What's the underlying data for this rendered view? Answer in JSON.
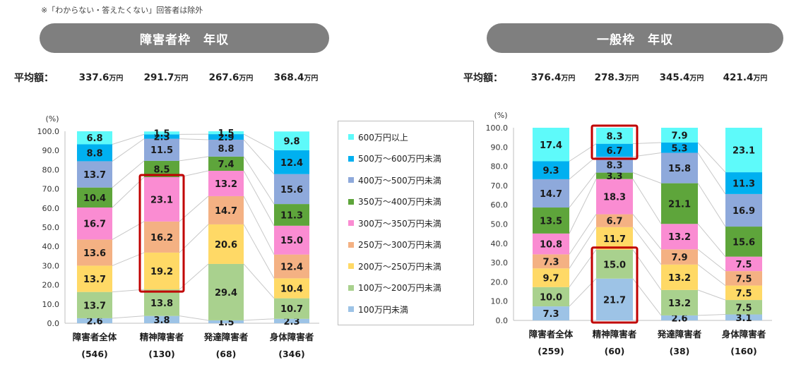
{
  "note": "※「わからない・答えたくない」回答者は除外",
  "titles": {
    "left": "障害者枠　年収",
    "right": "一般枠　年収"
  },
  "avg_label": "平均額：",
  "avg_unit": "万円",
  "avg_left": [
    "337.6",
    "291.7",
    "267.6",
    "368.4"
  ],
  "avg_right": [
    "376.4",
    "278.3",
    "345.4",
    "421.4"
  ],
  "legend": [
    {
      "label": "600万円以上",
      "color": "#5EFAFA"
    },
    {
      "label": "500万～600万円未満",
      "color": "#00B0F0"
    },
    {
      "label": "400万～500万円未満",
      "color": "#8EA9DB"
    },
    {
      "label": "350万～400万円未満",
      "color": "#5EA53B"
    },
    {
      "label": "300万～350万円未満",
      "color": "#FA8CD2"
    },
    {
      "label": "250万～300万円未満",
      "color": "#F4B183"
    },
    {
      "label": "200万～250万円未満",
      "color": "#FFD966"
    },
    {
      "label": "100万～200万円未満",
      "color": "#A9D18E"
    },
    {
      "label": "100万円未満",
      "color": "#9DC3E6"
    }
  ],
  "chart_data": [
    {
      "type": "bar",
      "stacked": true,
      "title": "障害者枠　年収",
      "ylabel": "(%)",
      "ylim": [
        0,
        100
      ],
      "yticks": [
        "0.0",
        "10.0",
        "20.0",
        "30.0",
        "40.0",
        "50.0",
        "60.0",
        "70.0",
        "80.0",
        "90.0",
        "100.0"
      ],
      "categories": [
        "障害者全体",
        "精神障害者",
        "発達障害者",
        "身体障害者"
      ],
      "counts": [
        "(546)",
        "(130)",
        "(68)",
        "(346)"
      ],
      "series": [
        {
          "name": "100万円未満",
          "values": [
            2.6,
            3.8,
            1.5,
            2.3
          ]
        },
        {
          "name": "100万～200万円未満",
          "values": [
            13.7,
            13.8,
            29.4,
            10.7
          ]
        },
        {
          "name": "200万～250万円未満",
          "values": [
            13.7,
            19.2,
            20.6,
            10.4
          ]
        },
        {
          "name": "250万～300万円未満",
          "values": [
            13.6,
            16.2,
            14.7,
            12.4
          ]
        },
        {
          "name": "300万～350万円未満",
          "values": [
            16.7,
            23.1,
            13.2,
            15.0
          ]
        },
        {
          "name": "350万～400万円未満",
          "values": [
            10.4,
            8.5,
            7.4,
            11.3
          ]
        },
        {
          "name": "400万～500万円未満",
          "values": [
            13.7,
            11.5,
            8.8,
            15.6
          ]
        },
        {
          "name": "500万～600万円未満",
          "values": [
            8.8,
            2.3,
            2.9,
            12.4
          ]
        },
        {
          "name": "600万円以上",
          "values": [
            6.8,
            1.5,
            1.5,
            9.8
          ]
        }
      ]
    },
    {
      "type": "bar",
      "stacked": true,
      "title": "一般枠　年収",
      "ylabel": "(%)",
      "ylim": [
        0,
        100
      ],
      "yticks": [
        "0.0",
        "10.0",
        "20.0",
        "30.0",
        "40.0",
        "50.0",
        "60.0",
        "70.0",
        "80.0",
        "90.0",
        "100.0"
      ],
      "categories": [
        "障害者全体",
        "精神障害者",
        "発達障害者",
        "身体障害者"
      ],
      "counts": [
        "(259)",
        "(60)",
        "(38)",
        "(160)"
      ],
      "series": [
        {
          "name": "100万円未満",
          "values": [
            7.3,
            21.7,
            2.6,
            3.1
          ]
        },
        {
          "name": "100万～200万円未満",
          "values": [
            10.0,
            15.0,
            13.2,
            7.5
          ]
        },
        {
          "name": "200万～250万円未満",
          "values": [
            9.7,
            11.7,
            13.2,
            7.5
          ]
        },
        {
          "name": "250万～300万円未満",
          "values": [
            7.3,
            6.7,
            7.9,
            7.5
          ]
        },
        {
          "name": "300万～350万円未満",
          "values": [
            10.8,
            18.3,
            13.2,
            7.5
          ]
        },
        {
          "name": "350万～400万円未満",
          "values": [
            13.5,
            3.3,
            21.1,
            15.6
          ]
        },
        {
          "name": "400万～500万円未満",
          "values": [
            14.7,
            8.3,
            15.8,
            16.9
          ]
        },
        {
          "name": "500万～600万円未満",
          "values": [
            9.3,
            6.7,
            5.3,
            11.3
          ]
        },
        {
          "name": "600万円以上",
          "values": [
            17.4,
            8.3,
            7.9,
            23.1
          ]
        }
      ]
    }
  ]
}
